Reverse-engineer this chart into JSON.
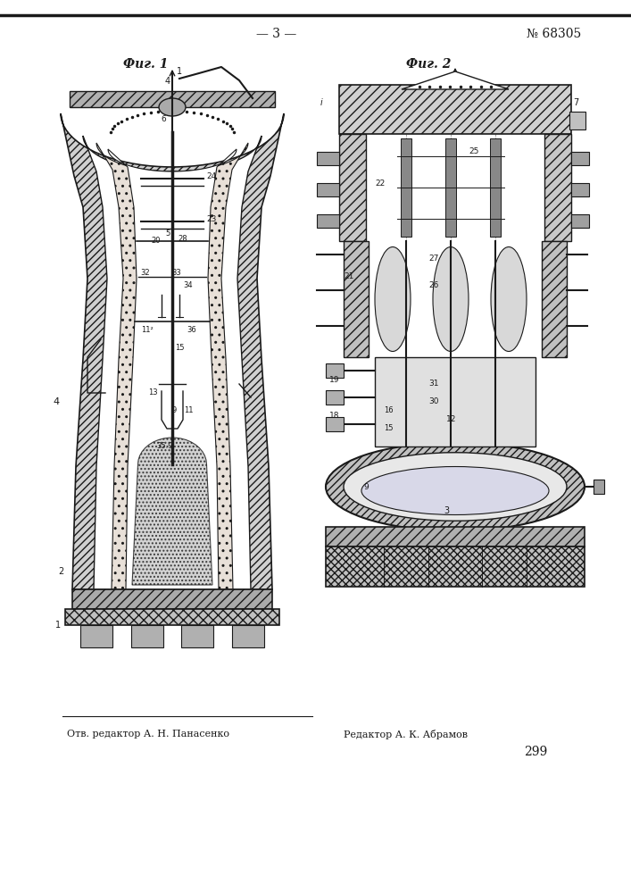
{
  "page_number": "— 3 —",
  "patent_number": "№ 68305",
  "fig1_label": "Фиг. 1",
  "fig2_label": "Фиг. 2",
  "bottom_left_text": "Отв. редактор А. Н. Панасенко",
  "bottom_right_text": "Редактор А. К. Абрамов",
  "page_label": "299",
  "bg_color": "#ffffff",
  "line_color": "#1a1a1a"
}
